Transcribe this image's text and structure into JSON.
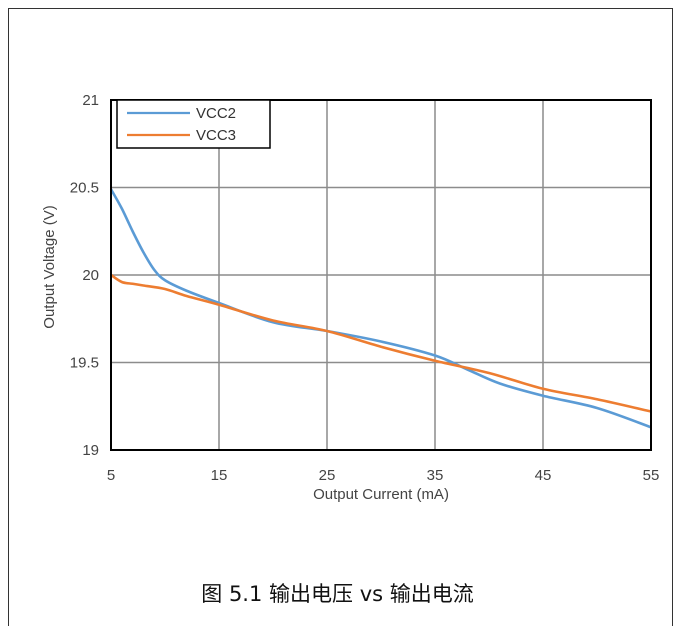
{
  "caption": "图 5.1 输出电压 vs 输出电流",
  "chart_data": {
    "type": "line",
    "xlabel": "Output Current (mA)",
    "ylabel": "Output Voltage (V)",
    "xlim": [
      5,
      55
    ],
    "ylim": [
      19,
      21
    ],
    "xticks": [
      "5",
      "15",
      "25",
      "35",
      "45",
      "55"
    ],
    "yticks": [
      "19",
      "19.5",
      "20",
      "20.5",
      "21"
    ],
    "grid": true,
    "legend_position": "top-left",
    "series": [
      {
        "name": "VCC2",
        "color": "#5B9BD5",
        "x": [
          5,
          6,
          7,
          8,
          9,
          10,
          12,
          15,
          20,
          25,
          30,
          35,
          38,
          41,
          45,
          50,
          55
        ],
        "y": [
          20.49,
          20.38,
          20.25,
          20.13,
          20.03,
          19.97,
          19.91,
          19.84,
          19.73,
          19.68,
          19.62,
          19.54,
          19.46,
          19.38,
          19.31,
          19.24,
          19.13
        ]
      },
      {
        "name": "VCC3",
        "color": "#ED7D31",
        "x": [
          5,
          6,
          7,
          8,
          10,
          12,
          15,
          20,
          25,
          30,
          35,
          40,
          45,
          50,
          55
        ],
        "y": [
          20.0,
          19.96,
          19.95,
          19.94,
          19.92,
          19.88,
          19.83,
          19.74,
          19.68,
          19.59,
          19.51,
          19.44,
          19.35,
          19.29,
          19.22
        ]
      }
    ]
  }
}
